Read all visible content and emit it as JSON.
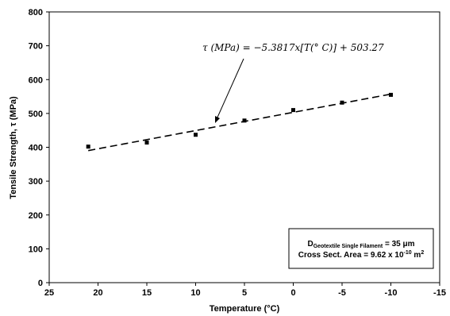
{
  "chart_data": {
    "type": "scatter",
    "xlabel": "Temperature (°C)",
    "ylabel": "Tensile Strength, τ (MPa)",
    "x_reversed": true,
    "xlim": [
      25,
      -15
    ],
    "ylim": [
      0,
      800
    ],
    "x_ticks": [
      "25",
      "20",
      "15",
      "10",
      "5",
      "0",
      "-5",
      "-10",
      "-15"
    ],
    "y_ticks": [
      "0",
      "100",
      "200",
      "300",
      "400",
      "500",
      "600",
      "700",
      "800"
    ],
    "grid": false,
    "series": [
      {
        "marker": "square",
        "color": "#000000",
        "points": [
          {
            "x": 21,
            "y": 402
          },
          {
            "x": 15,
            "y": 414
          },
          {
            "x": 10,
            "y": 437
          },
          {
            "x": 5,
            "y": 479
          },
          {
            "x": 0,
            "y": 510
          },
          {
            "x": -5,
            "y": 532
          },
          {
            "x": -10,
            "y": 555
          }
        ]
      }
    ],
    "trendline": {
      "style": "dashed",
      "slope": -5.3817,
      "intercept": 503.27,
      "x_range": [
        21,
        -10
      ],
      "equation_label": "τ (MPa) =  −5.3817x[T(° C)] + 503.27"
    },
    "info_box": {
      "line1_main": "D",
      "line1_sub": "Geotextile Single Filament",
      "line1_rest": " = 35 μm",
      "line2_main": "Cross Sect. Area = 9.62 x 10",
      "line2_sup": "-10",
      "line2_rest": " m",
      "line2_sup2": "2"
    }
  }
}
